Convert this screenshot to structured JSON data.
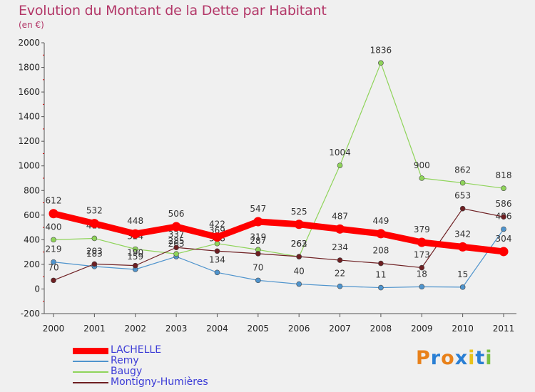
{
  "title": "Evolution du Montant de la Dette par Habitant",
  "unit": "(en €)",
  "logo_text": "Proxiti",
  "colors": {
    "background": "#f0f0f0",
    "title": "#b33768",
    "legend_text": "#3b3bd6",
    "axis": "#555555"
  },
  "chart_data": {
    "type": "line",
    "title": "Evolution du Montant de la Dette par Habitant",
    "ylabel": "(en €)",
    "xlabel": "",
    "ylim": [
      -200,
      2000
    ],
    "yticks": [
      -200,
      0,
      200,
      400,
      600,
      800,
      1000,
      1200,
      1400,
      1600,
      1800,
      2000
    ],
    "x": [
      "2000",
      "2001",
      "2002",
      "2003",
      "2004",
      "2005",
      "2006",
      "2007",
      "2008",
      "2009",
      "2010",
      "2011"
    ],
    "grid": false,
    "legend": "bottom-left",
    "series": [
      {
        "name": "Remy",
        "color": "#4f94cd",
        "values": [
          219,
          183,
          159,
          263,
          134,
          70,
          40,
          22,
          11,
          18,
          15,
          486
        ]
      },
      {
        "name": "Baugy",
        "color": "#8fd45a",
        "values": [
          400,
          411,
          324,
          285,
          369,
          319,
          262,
          1004,
          1836,
          900,
          862,
          818
        ]
      },
      {
        "name": "Montigny-Humières",
        "color": "#6e1f22",
        "values": [
          70,
          203,
          190,
          337,
          308,
          287,
          263,
          234,
          208,
          173,
          653,
          586
        ]
      },
      {
        "name": "LACHELLE",
        "color": "#ff0000",
        "values": [
          612,
          532,
          448,
          506,
          422,
          547,
          525,
          487,
          449,
          379,
          342,
          304
        ]
      }
    ],
    "legend_order": [
      "LACHELLE",
      "Remy",
      "Baugy",
      "Montigny-Humières"
    ]
  }
}
